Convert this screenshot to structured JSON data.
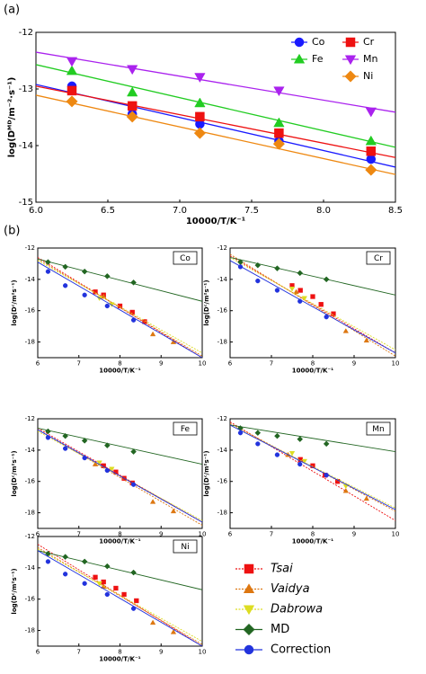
{
  "chart_data": [
    {
      "type": "scatter",
      "panel_label": "(a)",
      "x_label": "10000/T/K⁻¹",
      "y_label": "log(Dᴹᴰ/m⁻²·s⁻¹)",
      "xlim": [
        6.0,
        8.5
      ],
      "xticks": [
        {
          "value": 6,
          "label": "6.0"
        },
        6.5,
        {
          "value": 7,
          "label": "7.0"
        },
        7.5,
        {
          "value": 8,
          "label": "8.0"
        },
        8.5
      ],
      "ylim": [
        -15,
        -12
      ],
      "yticks": [
        -12,
        -13,
        -14,
        -15
      ],
      "legend": "top-right",
      "x": [
        6.25,
        6.67,
        7.14,
        7.69,
        8.33
      ],
      "series": [
        {
          "name": "Co",
          "color": "#1a1aff",
          "marker": "circle",
          "line_style": "solid",
          "values": [
            -12.95,
            -13.44,
            -13.62,
            -13.92,
            -14.24
          ],
          "fit": [
            -12.92,
            -14.38
          ]
        },
        {
          "name": "Cr",
          "color": "#ee1111",
          "marker": "square",
          "line_style": "solid",
          "values": [
            -13.03,
            -13.3,
            -13.49,
            -13.78,
            -14.1
          ],
          "fit": [
            -12.95,
            -14.21
          ]
        },
        {
          "name": "Fe",
          "color": "#22cc22",
          "marker": "triangle",
          "line_style": "solid",
          "values": [
            -12.68,
            -13.06,
            -13.25,
            -13.6,
            -13.92
          ],
          "fit": [
            -12.57,
            -14.03
          ]
        },
        {
          "name": "Mn",
          "color": "#aa22ee",
          "marker": "down-triangle",
          "line_style": "solid",
          "values": [
            -12.51,
            -12.65,
            -12.79,
            -13.03,
            -13.4
          ],
          "fit": [
            -12.35,
            -13.41
          ]
        },
        {
          "name": "Ni",
          "color": "#ee8811",
          "marker": "diamond",
          "line_style": "solid",
          "values": [
            -13.22,
            -13.49,
            -13.78,
            -13.97,
            -14.43
          ],
          "fit": [
            -13.11,
            -14.51
          ]
        }
      ]
    },
    {
      "type": "scatter",
      "panel_label": "(b)",
      "label": "Co",
      "x_label": "10000/T/K⁻¹",
      "y_label": "log(Dᶜ/m²s⁻¹)",
      "xlim": [
        6,
        10
      ],
      "xticks": [
        6,
        7,
        8,
        9,
        10
      ],
      "ylim": [
        -19,
        -12
      ],
      "yticks": [
        -12,
        -14,
        -16,
        -18
      ],
      "series": [
        {
          "color": "#ee1111",
          "marker": "square",
          "line_style": "dotted",
          "x": [
            7.4,
            7.6,
            8.0,
            8.3,
            8.6
          ],
          "values": [
            -14.8,
            -15.0,
            -15.7,
            -16.1,
            -16.7
          ],
          "fit": [
            -12.6,
            -19.0
          ]
        },
        {
          "color": "#dd7711",
          "marker": "triangle",
          "line_style": "dotted",
          "x": [
            7.6,
            8.8,
            9.3
          ],
          "values": [
            -15.1,
            -17.5,
            -18.0
          ],
          "fit": [
            -12.7,
            -18.9
          ]
        },
        {
          "color": "#dddd22",
          "marker": "down-triangle",
          "line_style": "dotted",
          "x": [
            7.5,
            7.8
          ],
          "values": [
            -15.2,
            -15.6
          ],
          "fit": [
            -12.8,
            -18.7
          ]
        },
        {
          "color": "#226622",
          "marker": "diamond",
          "line_style": "solid",
          "x": [
            6.25,
            6.67,
            7.14,
            7.69,
            8.33
          ],
          "values": [
            -12.9,
            -13.2,
            -13.5,
            -13.8,
            -14.2
          ],
          "fit": [
            -12.7,
            -15.4
          ]
        },
        {
          "color": "#2233dd",
          "marker": "circle",
          "line_style": "solid",
          "x": [
            6.25,
            6.67,
            7.14,
            7.69,
            8.33
          ],
          "values": [
            -13.5,
            -14.4,
            -15.0,
            -15.7,
            -16.6
          ],
          "fit": [
            -12.9,
            -19.0
          ]
        }
      ]
    },
    {
      "type": "scatter",
      "label": "Cr",
      "x_label": "10000/T/K⁻¹",
      "y_label": "log(Dᶜ/m²s⁻¹)",
      "xlim": [
        6,
        10
      ],
      "xticks": [
        6,
        7,
        8,
        9,
        10
      ],
      "ylim": [
        -19,
        -12
      ],
      "yticks": [
        -12,
        -14,
        -16,
        -18
      ],
      "series": [
        {
          "color": "#ee1111",
          "marker": "square",
          "line_style": "dotted",
          "x": [
            7.5,
            7.7,
            8.0,
            8.2,
            8.5
          ],
          "values": [
            -14.4,
            -14.7,
            -15.1,
            -15.6,
            -16.2
          ],
          "fit": [
            -12.5,
            -18.7
          ]
        },
        {
          "color": "#dd7711",
          "marker": "triangle",
          "line_style": "dotted",
          "x": [
            7.6,
            8.8,
            9.3
          ],
          "values": [
            -14.8,
            -17.3,
            -17.9
          ],
          "fit": [
            -12.4,
            -18.9
          ]
        },
        {
          "color": "#dddd22",
          "marker": "down-triangle",
          "line_style": "dotted",
          "x": [
            7.5,
            7.8
          ],
          "values": [
            -14.6,
            -15.2
          ],
          "fit": [
            -12.6,
            -18.5
          ]
        },
        {
          "color": "#226622",
          "marker": "diamond",
          "line_style": "solid",
          "x": [
            6.25,
            6.67,
            7.14,
            7.69,
            8.33
          ],
          "values": [
            -12.9,
            -13.1,
            -13.3,
            -13.6,
            -14.0
          ],
          "fit": [
            -12.6,
            -15.0
          ]
        },
        {
          "color": "#2233dd",
          "marker": "circle",
          "line_style": "solid",
          "x": [
            6.25,
            6.67,
            7.14,
            7.69,
            8.33
          ],
          "values": [
            -13.2,
            -14.1,
            -14.7,
            -15.4,
            -16.4
          ],
          "fit": [
            -12.8,
            -18.7
          ]
        }
      ]
    },
    {
      "type": "scatter",
      "label": "Fe",
      "x_label": "10000/T/K⁻¹",
      "y_label": "log(Dᶜ/m²s⁻¹)",
      "xlim": [
        6,
        10
      ],
      "xticks": [
        6,
        7,
        8,
        9,
        10
      ],
      "ylim": [
        -19,
        -12
      ],
      "yticks": [
        -12,
        -14,
        -16,
        -18
      ],
      "series": [
        {
          "color": "#ee1111",
          "marker": "square",
          "line_style": "dotted",
          "x": [
            7.6,
            7.9,
            8.1,
            8.3
          ],
          "values": [
            -15.0,
            -15.4,
            -15.8,
            -16.1
          ],
          "fit": [
            -12.6,
            -18.6
          ]
        },
        {
          "color": "#dd7711",
          "marker": "triangle",
          "line_style": "dotted",
          "x": [
            7.4,
            8.8,
            9.3
          ],
          "values": [
            -14.9,
            -17.3,
            -17.9
          ],
          "fit": [
            -12.7,
            -18.8
          ]
        },
        {
          "color": "#dddd22",
          "marker": "down-triangle",
          "line_style": "dotted",
          "x": [
            7.5,
            7.8
          ],
          "values": [
            -14.8,
            -15.2
          ],
          "fit": [
            -12.8,
            -18.5
          ]
        },
        {
          "color": "#226622",
          "marker": "diamond",
          "line_style": "solid",
          "x": [
            6.25,
            6.67,
            7.14,
            7.69,
            8.33
          ],
          "values": [
            -12.8,
            -13.1,
            -13.4,
            -13.7,
            -14.1
          ],
          "fit": [
            -12.6,
            -14.9
          ]
        },
        {
          "color": "#2233dd",
          "marker": "circle",
          "line_style": "solid",
          "x": [
            6.25,
            6.67,
            7.14,
            7.69,
            8.33
          ],
          "values": [
            -13.2,
            -13.9,
            -14.5,
            -15.3,
            -16.2
          ],
          "fit": [
            -12.7,
            -18.6
          ]
        }
      ]
    },
    {
      "type": "scatter",
      "label": "Mn",
      "x_label": "10000/T/K⁻¹",
      "y_label": "log(Dᶜ/m²s⁻¹)",
      "xlim": [
        6,
        10
      ],
      "xticks": [
        6,
        7,
        8,
        9,
        10
      ],
      "ylim": [
        -19,
        -12
      ],
      "yticks": [
        -12,
        -14,
        -16,
        -18
      ],
      "series": [
        {
          "color": "#ee1111",
          "marker": "square",
          "line_style": "dotted",
          "x": [
            7.7,
            8.0,
            8.3,
            8.6
          ],
          "values": [
            -14.6,
            -15.0,
            -15.6,
            -16.0
          ],
          "fit": [
            -12.2,
            -18.5
          ]
        },
        {
          "color": "#dd7711",
          "marker": "triangle",
          "line_style": "dotted",
          "x": [
            7.4,
            8.8,
            9.3
          ],
          "values": [
            -14.3,
            -16.6,
            -17.1
          ],
          "fit": [
            -12.3,
            -17.9
          ]
        },
        {
          "color": "#dddd22",
          "marker": "down-triangle",
          "line_style": "dotted",
          "x": [
            7.5,
            7.8,
            8.8
          ],
          "values": [
            -14.2,
            -14.7,
            -16.3
          ],
          "fit": [
            -12.4,
            -17.7
          ]
        },
        {
          "color": "#226622",
          "marker": "diamond",
          "line_style": "solid",
          "x": [
            6.25,
            6.67,
            7.14,
            7.69,
            8.33
          ],
          "values": [
            -12.6,
            -12.9,
            -13.1,
            -13.3,
            -13.6
          ],
          "fit": [
            -12.4,
            -14.1
          ]
        },
        {
          "color": "#2233dd",
          "marker": "circle",
          "line_style": "solid",
          "x": [
            6.25,
            6.67,
            7.14,
            7.69,
            8.33
          ],
          "values": [
            -12.9,
            -13.6,
            -14.3,
            -14.9,
            -15.6
          ],
          "fit": [
            -12.4,
            -17.8
          ]
        }
      ]
    },
    {
      "type": "scatter",
      "label": "Ni",
      "x_label": "10000/T/K⁻¹",
      "y_label": "log(Dᶜ/m²s⁻¹)",
      "xlim": [
        6,
        10
      ],
      "xticks": [
        6,
        7,
        8,
        9,
        10
      ],
      "ylim": [
        -19,
        -12
      ],
      "yticks": [
        -12,
        -14,
        -16,
        -18
      ],
      "legend": "right",
      "series": [
        {
          "name": "Tsai",
          "color": "#ee1111",
          "marker": "square",
          "line_style": "dotted",
          "x": [
            7.4,
            7.6,
            7.9,
            8.1,
            8.4
          ],
          "values": [
            -14.6,
            -14.9,
            -15.3,
            -15.7,
            -16.1
          ],
          "fit": [
            -12.5,
            -19.0
          ]
        },
        {
          "name": "Vaidya",
          "color": "#dd7711",
          "marker": "triangle",
          "line_style": "dotted",
          "x": [
            7.6,
            8.8,
            9.3
          ],
          "values": [
            -15.2,
            -17.5,
            -18.1
          ],
          "fit": [
            -12.7,
            -18.9
          ]
        },
        {
          "name": "Dabrowa",
          "color": "#dddd22",
          "marker": "down-triangle",
          "line_style": "dotted",
          "x": [
            7.5
          ],
          "values": [
            -15.0
          ],
          "fit": [
            -12.8,
            -18.7
          ]
        },
        {
          "name": "MD",
          "color": "#226622",
          "marker": "diamond",
          "line_style": "solid",
          "x": [
            6.25,
            6.67,
            7.14,
            7.69,
            8.33
          ],
          "values": [
            -13.1,
            -13.3,
            -13.6,
            -13.9,
            -14.3
          ],
          "fit": [
            -12.9,
            -15.4
          ]
        },
        {
          "name": "Correction",
          "color": "#2233dd",
          "marker": "circle",
          "line_style": "solid",
          "x": [
            6.25,
            6.67,
            7.14,
            7.69,
            8.33
          ],
          "values": [
            -13.6,
            -14.4,
            -15.0,
            -15.7,
            -16.6
          ],
          "fit": [
            -12.9,
            -19.0
          ]
        }
      ]
    }
  ]
}
